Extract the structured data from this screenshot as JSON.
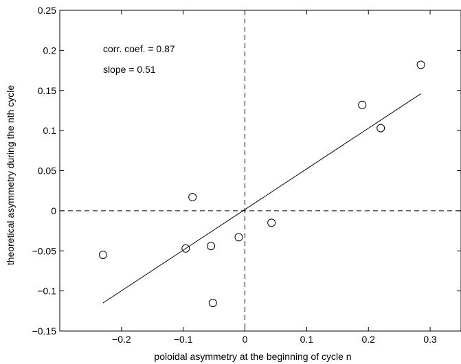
{
  "chart_data": {
    "type": "scatter",
    "xlabel": "poloidal asymmetry at the beginning of cycle n",
    "ylabel": "theoretical asymmetry during the nth cycle",
    "xlim": [
      -0.3,
      0.35
    ],
    "ylim": [
      -0.15,
      0.25
    ],
    "x_ticks": [
      {
        "value": -0.2,
        "label": "−0.2"
      },
      {
        "value": -0.1,
        "label": "−0.1"
      },
      {
        "value": 0,
        "label": "0"
      },
      {
        "value": 0.1,
        "label": "0.1"
      },
      {
        "value": 0.2,
        "label": "0.2"
      },
      {
        "value": 0.3,
        "label": "0.3"
      }
    ],
    "y_ticks": [
      {
        "value": -0.15,
        "label": "−0.15"
      },
      {
        "value": -0.1,
        "label": "−0.1"
      },
      {
        "value": -0.05,
        "label": "−0.05"
      },
      {
        "value": 0,
        "label": "0"
      },
      {
        "value": 0.05,
        "label": "0.05"
      },
      {
        "value": 0.1,
        "label": "0.1"
      },
      {
        "value": 0.15,
        "label": "0.15"
      },
      {
        "value": 0.2,
        "label": "0.2"
      },
      {
        "value": 0.25,
        "label": "0.25"
      }
    ],
    "points": [
      {
        "x": -0.23,
        "y": -0.055
      },
      {
        "x": -0.096,
        "y": -0.047
      },
      {
        "x": -0.085,
        "y": 0.017
      },
      {
        "x": -0.055,
        "y": -0.044
      },
      {
        "x": -0.052,
        "y": -0.115
      },
      {
        "x": -0.01,
        "y": -0.033
      },
      {
        "x": 0.043,
        "y": -0.015
      },
      {
        "x": 0.19,
        "y": 0.132
      },
      {
        "x": 0.22,
        "y": 0.103
      },
      {
        "x": 0.285,
        "y": 0.182
      }
    ],
    "fit_line": {
      "x": [
        -0.23,
        0.285
      ],
      "y": [
        -0.115,
        0.146
      ]
    },
    "reference_lines": {
      "x": 0,
      "y": 0,
      "style": "dashed"
    },
    "annotations": [
      "corr. coef. = 0.87",
      "slope = 0.51"
    ],
    "grid": false,
    "marker": "open-circle"
  }
}
